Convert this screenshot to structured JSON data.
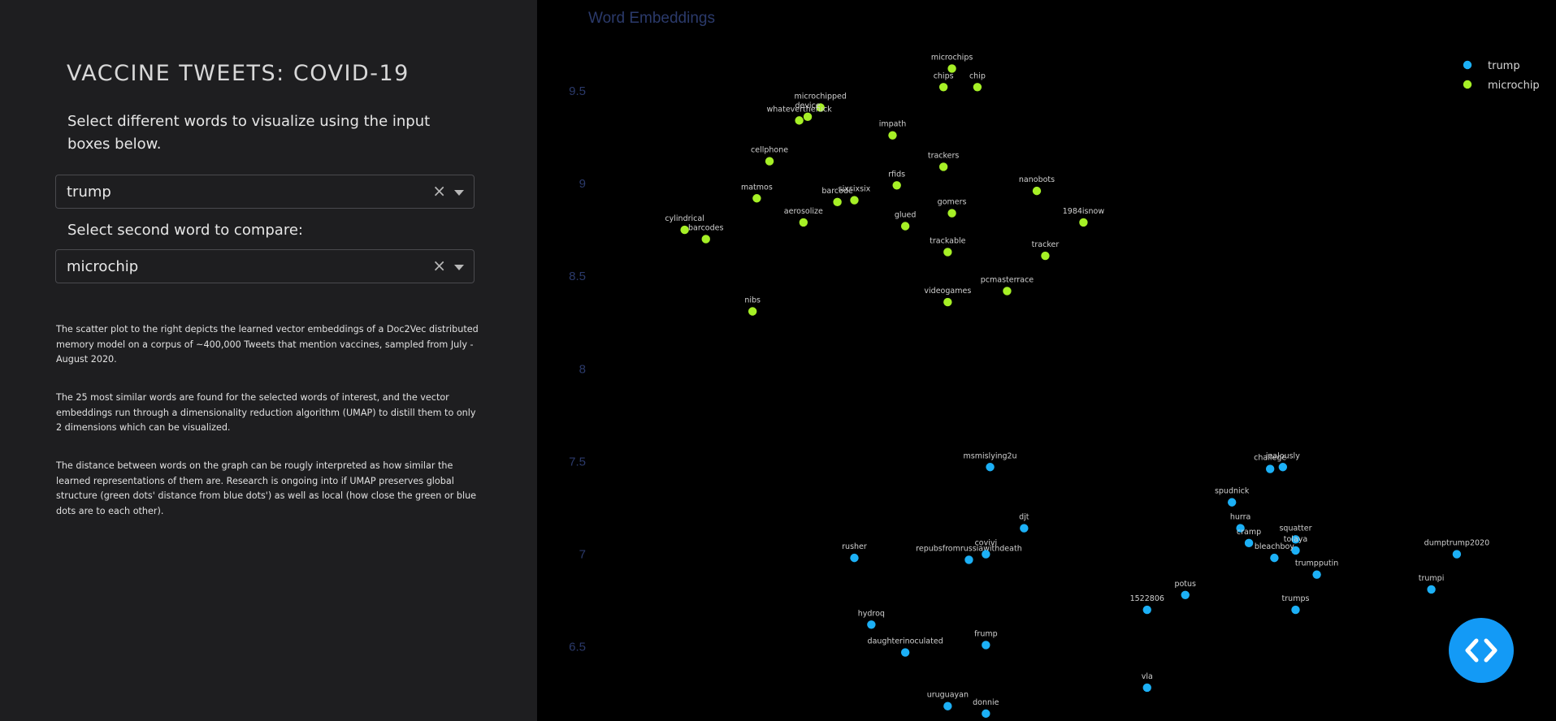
{
  "sidebar": {
    "title": "VACCINE TWEETS: COVID-19",
    "instruction": "Select different words to visualize using the input boxes below.",
    "second_label": "Select second word to compare:",
    "word1": {
      "value": "trump"
    },
    "word2": {
      "value": "microchip"
    },
    "paragraphs": [
      "The scatter plot to the right depicts the learned vector embeddings of a Doc2Vec distributed memory model on a corpus of ~400,000 Tweets that mention vaccines, sampled from July - August 2020.",
      "The 25 most similar words are found for the selected words of interest, and the vector embeddings run through a dimensionality reduction algorithm (UMAP) to distill them to only 2 dimensions which can be visualized.",
      "The distance between words on the graph can be rougly interpreted as how similar the learned representations of them are. Research is ongoing into if UMAP preserves global structure (green dots' distance from blue dots') as well as local (how close the green or blue dots are to each other)."
    ]
  },
  "chart_data": {
    "type": "scatter",
    "title": "Word Embeddings",
    "xlabel": "",
    "ylabel": "",
    "y_ticks": [
      9.5,
      9,
      8.5,
      8,
      7.5,
      7,
      6.5
    ],
    "ylim": [
      6.1,
      9.99
    ],
    "xlim": [
      11.4,
      22.7
    ],
    "grid": false,
    "legend_position": "top-right",
    "series": [
      {
        "name": "trump",
        "color": "#1cb0f6",
        "points": [
          {
            "label": "msmislying2u",
            "x": 16.5,
            "y": 7.47
          },
          {
            "label": "challege",
            "x": 19.8,
            "y": 7.46
          },
          {
            "label": "jealously",
            "x": 19.95,
            "y": 7.47
          },
          {
            "label": "spudnick",
            "x": 19.35,
            "y": 7.28
          },
          {
            "label": "hurra",
            "x": 19.45,
            "y": 7.14
          },
          {
            "label": "cramp",
            "x": 19.55,
            "y": 7.06
          },
          {
            "label": "squatter",
            "x": 20.1,
            "y": 7.08
          },
          {
            "label": "tolaya",
            "x": 20.1,
            "y": 7.02
          },
          {
            "label": "bleachboy",
            "x": 19.85,
            "y": 6.98
          },
          {
            "label": "djt",
            "x": 16.9,
            "y": 7.14
          },
          {
            "label": "rusher",
            "x": 14.9,
            "y": 6.98
          },
          {
            "label": "repubsfromrussiawithdeath",
            "x": 16.25,
            "y": 6.97
          },
          {
            "label": "covivi",
            "x": 16.45,
            "y": 7.0
          },
          {
            "label": "trumpputin",
            "x": 20.35,
            "y": 6.89
          },
          {
            "label": "dumptrump2020",
            "x": 22.0,
            "y": 7.0
          },
          {
            "label": "trumpi",
            "x": 21.7,
            "y": 6.81
          },
          {
            "label": "1522806",
            "x": 18.35,
            "y": 6.7
          },
          {
            "label": "potus",
            "x": 18.8,
            "y": 6.78
          },
          {
            "label": "trumps",
            "x": 20.1,
            "y": 6.7
          },
          {
            "label": "hydroq",
            "x": 15.1,
            "y": 6.62
          },
          {
            "label": "daughterinoculated",
            "x": 15.5,
            "y": 6.47
          },
          {
            "label": "frump",
            "x": 16.45,
            "y": 6.51
          },
          {
            "label": "vla",
            "x": 18.35,
            "y": 6.28
          },
          {
            "label": "uruguayan",
            "x": 16.0,
            "y": 6.18
          },
          {
            "label": "donnie",
            "x": 16.45,
            "y": 6.14
          }
        ]
      },
      {
        "name": "microchip",
        "color": "#a6f026",
        "points": [
          {
            "label": "microchips",
            "x": 16.05,
            "y": 9.62
          },
          {
            "label": "chips",
            "x": 15.95,
            "y": 9.52
          },
          {
            "label": "chip",
            "x": 16.35,
            "y": 9.52
          },
          {
            "label": "microchipped",
            "x": 14.5,
            "y": 9.41
          },
          {
            "label": "device",
            "x": 14.35,
            "y": 9.36
          },
          {
            "label": "whateverthefuck",
            "x": 14.25,
            "y": 9.34
          },
          {
            "label": "impath",
            "x": 15.35,
            "y": 9.26
          },
          {
            "label": "cellphone",
            "x": 13.9,
            "y": 9.12
          },
          {
            "label": "trackers",
            "x": 15.95,
            "y": 9.09
          },
          {
            "label": "rfids",
            "x": 15.4,
            "y": 8.99
          },
          {
            "label": "nanobots",
            "x": 17.05,
            "y": 8.96
          },
          {
            "label": "matmos",
            "x": 13.75,
            "y": 8.92
          },
          {
            "label": "barcode",
            "x": 14.7,
            "y": 8.9
          },
          {
            "label": "sixsixsix",
            "x": 14.9,
            "y": 8.91
          },
          {
            "label": "gomers",
            "x": 16.05,
            "y": 8.84
          },
          {
            "label": "aerosolize",
            "x": 14.3,
            "y": 8.79
          },
          {
            "label": "glued",
            "x": 15.5,
            "y": 8.77
          },
          {
            "label": "1984isnow",
            "x": 17.6,
            "y": 8.79
          },
          {
            "label": "cylindrical",
            "x": 12.9,
            "y": 8.75
          },
          {
            "label": "barcodes",
            "x": 13.15,
            "y": 8.7
          },
          {
            "label": "trackable",
            "x": 16.0,
            "y": 8.63
          },
          {
            "label": "tracker",
            "x": 17.15,
            "y": 8.61
          },
          {
            "label": "pcmasterrace",
            "x": 16.7,
            "y": 8.42
          },
          {
            "label": "videogames",
            "x": 16.0,
            "y": 8.36
          },
          {
            "label": "nibs",
            "x": 13.7,
            "y": 8.31
          }
        ]
      }
    ]
  }
}
